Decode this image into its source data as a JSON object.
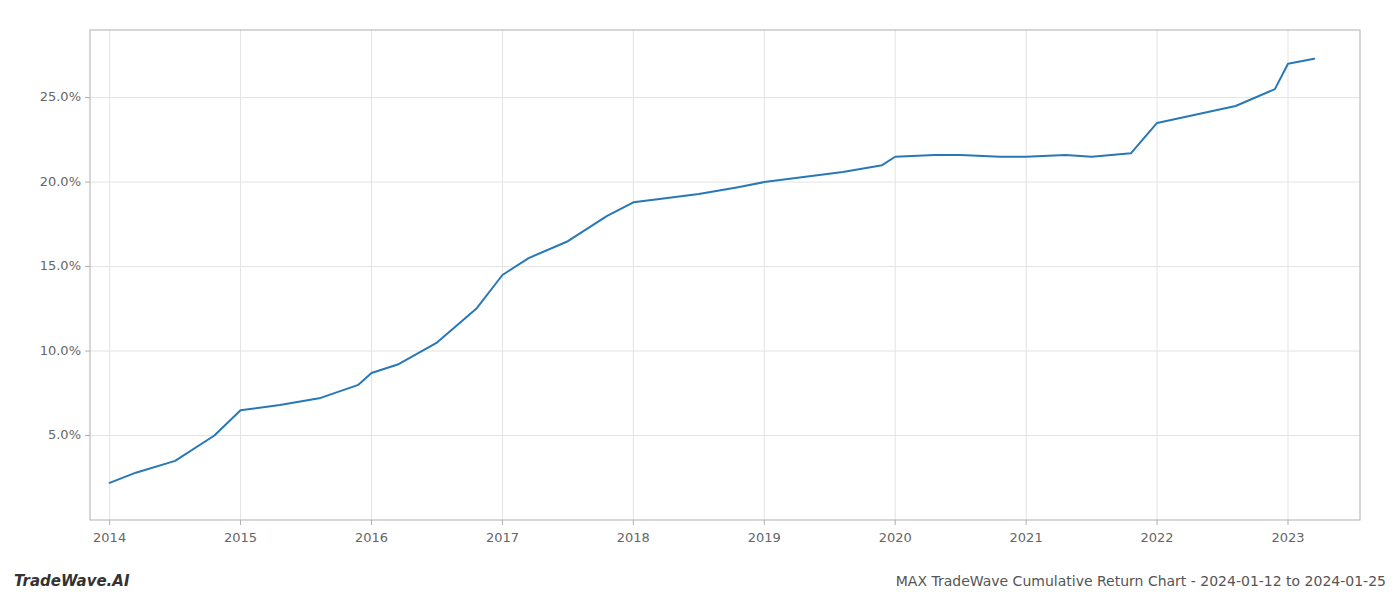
{
  "chart_data": {
    "type": "line",
    "title": "MAX TradeWave Cumulative Return Chart - 2024-01-12 to 2024-01-25",
    "annotations": [
      "TradeWave.AI"
    ],
    "x": [
      2014.0,
      2014.2,
      2014.5,
      2014.8,
      2015.0,
      2015.3,
      2015.6,
      2015.9,
      2016.0,
      2016.2,
      2016.5,
      2016.8,
      2017.0,
      2017.2,
      2017.5,
      2017.8,
      2018.0,
      2018.2,
      2018.5,
      2018.8,
      2019.0,
      2019.3,
      2019.6,
      2019.9,
      2020.0,
      2020.3,
      2020.5,
      2020.8,
      2021.0,
      2021.3,
      2021.5,
      2021.8,
      2022.0,
      2022.3,
      2022.6,
      2022.9,
      2023.0,
      2023.2
    ],
    "values": [
      2.2,
      2.8,
      3.5,
      5.0,
      6.5,
      6.8,
      7.2,
      8.0,
      8.7,
      9.2,
      10.5,
      12.5,
      14.5,
      15.5,
      16.5,
      18.0,
      18.8,
      19.0,
      19.3,
      19.7,
      20.0,
      20.3,
      20.6,
      21.0,
      21.5,
      21.6,
      21.6,
      21.5,
      21.5,
      21.6,
      21.5,
      21.7,
      23.5,
      24.0,
      24.5,
      25.5,
      27.0,
      27.3
    ],
    "color": "#2878b8",
    "xlim": [
      2013.85,
      2023.55
    ],
    "ylim": [
      0,
      29
    ],
    "xticks": [
      2014,
      2015,
      2016,
      2017,
      2018,
      2019,
      2020,
      2021,
      2022,
      2023
    ],
    "yticks": [
      {
        "value": 5.0,
        "label": "5.0%"
      },
      {
        "value": 10.0,
        "label": "10.0%"
      },
      {
        "value": 15.0,
        "label": "15.0%"
      },
      {
        "value": 20.0,
        "label": "20.0%"
      },
      {
        "value": 25.0,
        "label": "25.0%"
      }
    ],
    "grid": true
  }
}
